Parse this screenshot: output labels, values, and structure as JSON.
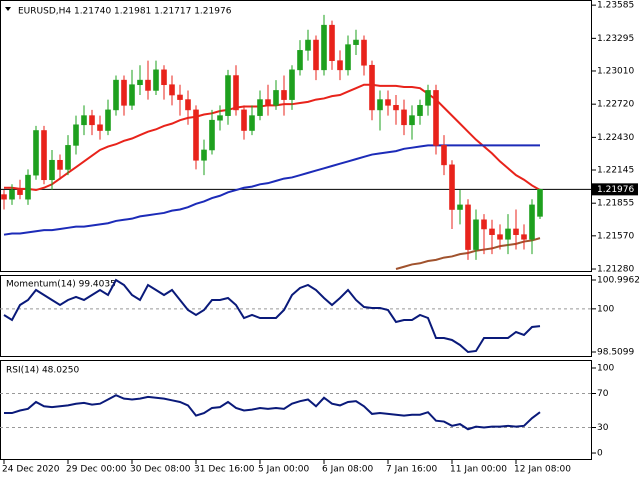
{
  "chart_data": [
    {
      "type": "candlestick",
      "title": "EURUSD,H4  1.21740 1.21981 1.21717 1.21976",
      "categories": [
        "24 Dec 2020",
        null,
        null,
        null,
        null,
        null,
        null,
        null,
        "29 Dec 00:00",
        null,
        null,
        null,
        null,
        null,
        null,
        null,
        "30 Dec 08:00",
        null,
        null,
        null,
        null,
        null,
        null,
        null,
        "31 Dec 16:00",
        null,
        null,
        null,
        null,
        null,
        null,
        null,
        "5 Jan 00:00",
        null,
        null,
        null,
        null,
        null,
        null,
        null,
        "6 Jan 08:00",
        null,
        null,
        null,
        null,
        null,
        null,
        null,
        "7 Jan 16:00",
        null,
        null,
        null,
        null,
        null,
        null,
        null,
        "11 Jan 00:00",
        null,
        null,
        null,
        null,
        null,
        null,
        null,
        "12 Jan 08:00",
        null,
        null,
        null
      ],
      "open": [
        1.2193,
        1.2189,
        1.2197,
        1.2189,
        1.221,
        1.2249,
        1.2206,
        1.2223,
        1.2215,
        1.2236,
        1.2254,
        1.2262,
        1.2254,
        1.2249,
        1.2267,
        1.2293,
        1.2271,
        1.2289,
        1.2293,
        1.2284,
        1.2302,
        1.2289,
        1.228,
        1.2276,
        1.2267,
        1.2223,
        1.2232,
        1.2258,
        1.2262,
        1.2297,
        1.2267,
        1.2249,
        1.2262,
        1.2276,
        1.2271,
        1.2284,
        1.2276,
        1.2302,
        1.2319,
        1.2328,
        1.2302,
        1.2341,
        1.231,
        1.2302,
        1.2324,
        1.2328,
        1.2306,
        1.2267,
        1.2276,
        1.2271,
        1.2267,
        1.2254,
        1.2262,
        1.2271,
        1.2284,
        1.2236,
        1.2219,
        1.218,
        1.2184,
        1.2145,
        1.2171,
        1.2163,
        1.2158,
        1.2154,
        1.2163,
        1.2158,
        1.2154,
        1.2174
      ],
      "high": [
        1.2197,
        1.2202,
        1.2206,
        1.2215,
        1.2253,
        1.2253,
        1.2232,
        1.2228,
        1.2245,
        1.2262,
        1.2271,
        1.2267,
        1.2262,
        1.2276,
        1.2297,
        1.2297,
        1.2302,
        1.2306,
        1.231,
        1.231,
        1.2306,
        1.2297,
        1.2289,
        1.2284,
        1.2271,
        1.2241,
        1.2267,
        1.2271,
        1.2302,
        1.2306,
        1.2271,
        1.2271,
        1.2284,
        1.2289,
        1.2293,
        1.2297,
        1.2306,
        1.2328,
        1.2337,
        1.2332,
        1.235,
        1.2345,
        1.2319,
        1.2332,
        1.2337,
        1.2332,
        1.231,
        1.2284,
        1.2284,
        1.228,
        1.2276,
        1.2271,
        1.2276,
        1.2289,
        1.2289,
        1.2245,
        1.2223,
        1.2197,
        1.2189,
        1.218,
        1.2176,
        1.2171,
        1.2167,
        1.2176,
        1.218,
        1.2167,
        1.2189,
        1.21981
      ],
      "low": [
        1.218,
        1.2184,
        1.2189,
        1.2184,
        1.2206,
        1.2202,
        1.2197,
        1.2206,
        1.221,
        1.2228,
        1.2245,
        1.2245,
        1.2241,
        1.2245,
        1.2262,
        1.2262,
        1.2267,
        1.228,
        1.2276,
        1.228,
        1.2276,
        1.2271,
        1.2262,
        1.2254,
        1.2215,
        1.221,
        1.2228,
        1.2249,
        1.2254,
        1.2262,
        1.2241,
        1.2245,
        1.2258,
        1.2262,
        1.2267,
        1.2262,
        1.2267,
        1.2297,
        1.231,
        1.2293,
        1.2297,
        1.2302,
        1.2293,
        1.2297,
        1.2315,
        1.2297,
        1.2258,
        1.2249,
        1.2262,
        1.2254,
        1.2245,
        1.2241,
        1.2254,
        1.2262,
        1.2228,
        1.221,
        1.2163,
        1.2167,
        1.2136,
        1.2136,
        1.2141,
        1.2141,
        1.2145,
        1.2141,
        1.2145,
        1.2145,
        1.2141,
        1.21717
      ],
      "close": [
        1.2189,
        1.2197,
        1.2193,
        1.221,
        1.2249,
        1.2206,
        1.2223,
        1.2215,
        1.2236,
        1.2254,
        1.2262,
        1.2254,
        1.2249,
        1.2267,
        1.2293,
        1.2271,
        1.2289,
        1.2293,
        1.2284,
        1.2302,
        1.2289,
        1.228,
        1.2276,
        1.2267,
        1.2223,
        1.2232,
        1.2258,
        1.2262,
        1.2297,
        1.2267,
        1.2249,
        1.2262,
        1.2276,
        1.2271,
        1.2284,
        1.2276,
        1.2302,
        1.2319,
        1.2328,
        1.2302,
        1.2341,
        1.231,
        1.2302,
        1.2324,
        1.2328,
        1.2306,
        1.2267,
        1.2276,
        1.2271,
        1.2267,
        1.2254,
        1.2262,
        1.2271,
        1.2284,
        1.2236,
        1.2219,
        1.218,
        1.2184,
        1.2145,
        1.2171,
        1.2163,
        1.2158,
        1.2154,
        1.2163,
        1.2158,
        1.2154,
        1.2184,
        1.21976
      ],
      "up_color": "#1ea01e",
      "down_color": "#e8231b",
      "series": [
        {
          "color": "#e8231b",
          "values": [
            1.2199,
            1.2199,
            1.2198,
            1.2198,
            1.2197,
            1.2199,
            1.2202,
            1.2207,
            1.2212,
            1.2217,
            1.2222,
            1.2227,
            1.2232,
            1.2235,
            1.2237,
            1.224,
            1.2242,
            1.2245,
            1.2248,
            1.225,
            1.2253,
            1.2255,
            1.2258,
            1.226,
            1.2261,
            1.2263,
            1.2264,
            1.2266,
            1.2267,
            1.2269,
            1.227,
            1.227,
            1.227,
            1.2271,
            1.2271,
            1.2272,
            1.2272,
            1.2273,
            1.2274,
            1.2276,
            1.2277,
            1.2279,
            1.228,
            1.2283,
            1.2286,
            1.2289,
            1.2289,
            1.2288,
            1.2288,
            1.2288,
            1.2287,
            1.2287,
            1.2286,
            1.2281,
            1.2276,
            1.2269,
            1.2262,
            1.2255,
            1.2248,
            1.2241,
            1.2235,
            1.2229,
            1.2222,
            1.2216,
            1.221,
            1.2206,
            1.2201,
            1.2197
          ]
        },
        {
          "color": "#1c2bb8",
          "values": [
            1.2158,
            1.2159,
            1.2159,
            1.216,
            1.2161,
            1.2162,
            1.2162,
            1.2163,
            1.2164,
            1.2165,
            1.2165,
            1.2166,
            1.2167,
            1.2168,
            1.217,
            1.2171,
            1.2172,
            1.2174,
            1.2175,
            1.2176,
            1.2177,
            1.2179,
            1.218,
            1.2182,
            1.2185,
            1.2187,
            1.219,
            1.2192,
            1.2195,
            1.2197,
            1.2199,
            1.22,
            1.2202,
            1.2203,
            1.2205,
            1.2207,
            1.2208,
            1.221,
            1.2212,
            1.2214,
            1.2216,
            1.2218,
            1.222,
            1.2222,
            1.2224,
            1.2226,
            1.2228,
            1.2229,
            1.223,
            1.2231,
            1.2233,
            1.2234,
            1.2235,
            1.2236,
            1.2236,
            1.2236,
            1.2236,
            1.2236,
            1.2236,
            1.2236,
            1.2236,
            1.2236,
            1.2236,
            1.2236,
            1.2236,
            1.2236,
            1.2236,
            1.2236
          ]
        },
        {
          "color": "#a0522d",
          "values": [
            null,
            null,
            null,
            null,
            null,
            null,
            null,
            null,
            null,
            null,
            null,
            null,
            null,
            null,
            null,
            null,
            null,
            null,
            null,
            null,
            null,
            null,
            null,
            null,
            null,
            null,
            null,
            null,
            null,
            null,
            null,
            null,
            null,
            null,
            null,
            null,
            null,
            null,
            null,
            null,
            null,
            null,
            null,
            null,
            null,
            null,
            null,
            null,
            null,
            1.2128,
            1.213,
            1.2132,
            1.2133,
            1.2135,
            1.2136,
            1.2138,
            1.2139,
            1.2141,
            1.2142,
            1.2144,
            1.2145,
            1.2146,
            1.2148,
            1.2149,
            1.215,
            1.2152,
            1.2153,
            1.2155
          ]
        }
      ],
      "price_line": 1.21976,
      "ylim": [
        1.21254,
        1.2363
      ],
      "yticks": [
        1.23585,
        1.23295,
        {
          "value": 1.2301,
          "label": "1.23010"
        },
        {
          "value": 1.2272,
          "label": "1.22720"
        },
        {
          "value": 1.2243,
          "label": "1.22430"
        },
        1.22145,
        1.21855,
        {
          "value": 1.2157,
          "label": "1.21570"
        },
        {
          "value": 1.2128,
          "label": "1.21280"
        }
      ],
      "grid": false
    },
    {
      "type": "line",
      "title": "Momentum(14) 99.4035",
      "color": "#0a1a7a",
      "values": [
        99.788,
        99.615,
        100.133,
        100.306,
        100.651,
        100.478,
        100.306,
        100.133,
        100.306,
        100.41,
        100.306,
        100.478,
        100.651,
        100.478,
        100.996,
        100.824,
        100.478,
        100.306,
        100.824,
        100.651,
        100.478,
        100.651,
        100.306,
        99.96,
        99.788,
        99.96,
        100.306,
        100.306,
        100.375,
        100.133,
        99.684,
        99.788,
        99.684,
        99.684,
        99.684,
        99.96,
        100.478,
        100.72,
        100.824,
        100.651,
        100.375,
        100.133,
        100.375,
        100.651,
        100.306,
        100.064,
        100.03,
        100.03,
        99.96,
        99.546,
        99.615,
        99.615,
        99.788,
        99.684,
        98.994,
        98.994,
        98.925,
        98.752,
        98.51,
        98.545,
        98.994,
        98.994,
        98.994,
        98.994,
        99.2,
        99.097,
        99.373,
        99.4035
      ],
      "ylim": [
        98.337,
        101.169
      ],
      "yticks": [
        98.5099,
        100,
        100.9962
      ],
      "grid": true
    },
    {
      "type": "line",
      "title": "RSI(14) 48.0250",
      "color": "#0a1a7a",
      "values": [
        47,
        47,
        50,
        52,
        60,
        55,
        54,
        55,
        56,
        58,
        59,
        57,
        58,
        63,
        68,
        64,
        63,
        64,
        66,
        65,
        64,
        62,
        60,
        56,
        44,
        47,
        53,
        54,
        60,
        53,
        50,
        51,
        53,
        52,
        53,
        52,
        58,
        61,
        63,
        55,
        65,
        58,
        56,
        60,
        61,
        55,
        46,
        47,
        46,
        45,
        44,
        45,
        45,
        48,
        38,
        37,
        32,
        34,
        28,
        31,
        30,
        31,
        31,
        32,
        31,
        32,
        41,
        48.025
      ],
      "ylim": [
        -8.2,
        109.4
      ],
      "yticks": [
        0,
        30,
        70,
        100
      ],
      "grid": true
    }
  ]
}
